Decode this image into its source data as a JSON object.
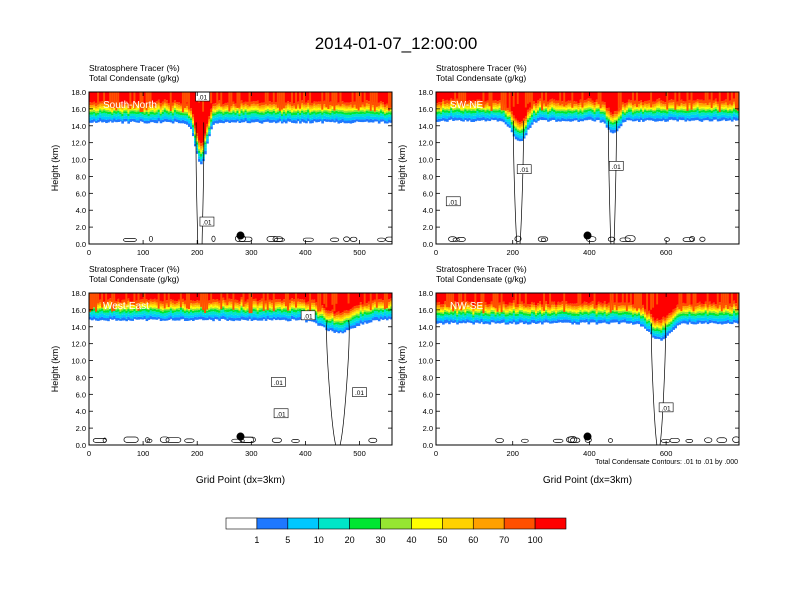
{
  "figure": {
    "title": "2014-01-07_12:00:00",
    "contour_note": "Total Condensate Contours: .01 to .01 by .000"
  },
  "colors": {
    "levels": [
      "#ffffff",
      "#1e78ff",
      "#00c8ff",
      "#00e6c8",
      "#00e632",
      "#96e632",
      "#ffff00",
      "#ffd200",
      "#ffa000",
      "#ff5000",
      "#ff0000"
    ],
    "contour": "#000000"
  },
  "chart_data": [
    {
      "type": "heatmap",
      "id": "south-north",
      "panel_label": "South-North",
      "title_line1": "Stratosphere Tracer   (%)",
      "title_line2": "Total Condensate   (g/kg)",
      "ylabel": "Height (km)",
      "xlabel": "",
      "xlim": [
        0,
        560
      ],
      "ylim": [
        0,
        18
      ],
      "xticks": [
        0,
        100,
        200,
        300,
        400,
        500
      ],
      "yticks": [
        "0.0",
        "2.0",
        "4.0",
        "6.0",
        "8.0",
        "10.0",
        "12.0",
        "14.0",
        "16.0",
        "18.0"
      ],
      "marker_x": 280,
      "contour_labels": [
        {
          "x": 218,
          "y": 2.6,
          "text": ".01"
        },
        {
          "x": 210,
          "y": 17.4,
          "text": ".01"
        }
      ],
      "tracer_base_km": 14.4,
      "dips": [
        {
          "x": 205,
          "depth": 5.0,
          "width": 14
        }
      ]
    },
    {
      "type": "heatmap",
      "id": "sw-ne",
      "panel_label": "SW-NE",
      "title_line1": "Stratosphere Tracer   (%)",
      "title_line2": "Total Condensate   (g/kg)",
      "ylabel": "Height (km)",
      "xlabel": "",
      "xlim": [
        0,
        790
      ],
      "ylim": [
        0,
        18
      ],
      "xticks": [
        0,
        200,
        400,
        600
      ],
      "yticks": [
        "0.0",
        "2.0",
        "4.0",
        "6.0",
        "8.0",
        "10.0",
        "12.0",
        "14.0",
        "16.0",
        "18.0"
      ],
      "marker_x": 395,
      "contour_labels": [
        {
          "x": 45,
          "y": 5.0,
          "text": ".01"
        },
        {
          "x": 230,
          "y": 8.8,
          "text": ".01"
        },
        {
          "x": 470,
          "y": 9.2,
          "text": ".01"
        }
      ],
      "tracer_base_km": 14.6,
      "dips": [
        {
          "x": 215,
          "depth": 2.5,
          "width": 25
        },
        {
          "x": 460,
          "depth": 1.5,
          "width": 20
        }
      ]
    },
    {
      "type": "heatmap",
      "id": "west-east",
      "panel_label": "West-East",
      "title_line1": "Stratosphere Tracer   (%)",
      "title_line2": "Total Condensate   (g/kg)",
      "ylabel": "Height (km)",
      "xlabel": "Grid Point (dx=3km)",
      "xlim": [
        0,
        560
      ],
      "ylim": [
        0,
        18
      ],
      "xticks": [
        0,
        100,
        200,
        300,
        400,
        500
      ],
      "yticks": [
        "0.0",
        "2.0",
        "4.0",
        "6.0",
        "8.0",
        "10.0",
        "12.0",
        "14.0",
        "16.0",
        "18.0"
      ],
      "marker_x": 280,
      "contour_labels": [
        {
          "x": 350,
          "y": 7.4,
          "text": ".01"
        },
        {
          "x": 355,
          "y": 3.7,
          "text": ".01"
        },
        {
          "x": 500,
          "y": 6.2,
          "text": ".01"
        },
        {
          "x": 405,
          "y": 15.3,
          "text": ".01"
        }
      ],
      "tracer_base_km": 14.8,
      "dips": [
        {
          "x": 460,
          "depth": 1.5,
          "width": 40
        }
      ]
    },
    {
      "type": "heatmap",
      "id": "nw-se",
      "panel_label": "NW-SE",
      "title_line1": "Stratosphere Tracer   (%)",
      "title_line2": "Total Condensate   (g/kg)",
      "ylabel": "Height (km)",
      "xlabel": "Grid Point (dx=3km)",
      "xlim": [
        0,
        790
      ],
      "ylim": [
        0,
        18
      ],
      "xticks": [
        0,
        200,
        400,
        600
      ],
      "yticks": [
        "0.0",
        "2.0",
        "4.0",
        "6.0",
        "8.0",
        "10.0",
        "12.0",
        "14.0",
        "16.0",
        "18.0"
      ],
      "marker_x": 395,
      "contour_labels": [
        {
          "x": 600,
          "y": 4.4,
          "text": ".01"
        }
      ],
      "tracer_base_km": 14.4,
      "dips": [
        {
          "x": 580,
          "depth": 2.0,
          "width": 35
        }
      ]
    }
  ],
  "colorbar": {
    "labels": [
      "1",
      "5",
      "10",
      "20",
      "30",
      "40",
      "50",
      "60",
      "70",
      "100"
    ]
  }
}
